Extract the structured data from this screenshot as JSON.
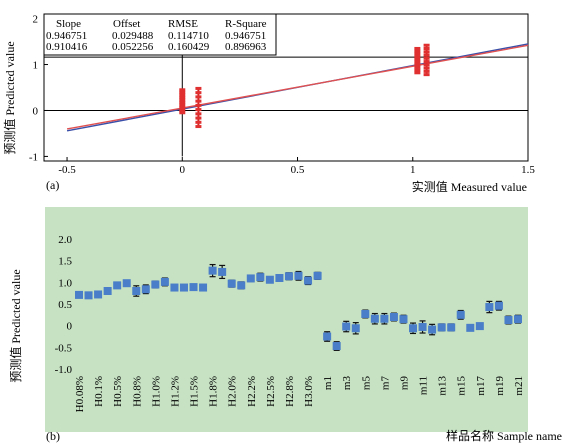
{
  "chart_data": [
    {
      "panel_label": "(a)",
      "type": "scatter",
      "xlabel": "实测值  Measured value",
      "ylabel": "预测值  Predicted value",
      "xlim": [
        -0.6,
        1.5
      ],
      "ylim": [
        -1.1,
        2.1
      ],
      "x_ticks": [
        "-0.5",
        "0",
        "0.5",
        "1",
        "1.5"
      ],
      "x_tick_values": [
        -0.5,
        0,
        0.5,
        1,
        1.5
      ],
      "y_ticks": [
        "-1",
        "0",
        "1",
        "2"
      ],
      "y_tick_values": [
        -1,
        0,
        1,
        2
      ],
      "reference_lines": [
        {
          "type": "vertical",
          "x": 0
        },
        {
          "type": "horizontal",
          "y": 0
        },
        {
          "type": "horizontal",
          "y": 1.16
        }
      ],
      "stats_table": {
        "headers": [
          "Slope",
          "Offset",
          "RMSE",
          "R-Square"
        ],
        "rows": [
          [
            "0.946751",
            "0.029488",
            "0.114710",
            "0.946751"
          ],
          [
            "0.910416",
            "0.052256",
            "0.160429",
            "0.896963"
          ]
        ]
      },
      "fit_lines": [
        {
          "slope": 0.946751,
          "offset": 0.029488,
          "color": "#3a4fa8"
        },
        {
          "slope": 0.910416,
          "offset": 0.052256,
          "color": "#e05050"
        }
      ],
      "clusters": [
        {
          "x": 0.0,
          "y_min": -0.05,
          "y_max": 0.45
        },
        {
          "x": 0.07,
          "y_min": -0.35,
          "y_max": 0.48
        },
        {
          "x": 1.02,
          "y_min": 0.82,
          "y_max": 1.35
        },
        {
          "x": 1.06,
          "y_min": 0.78,
          "y_max": 1.42
        }
      ]
    },
    {
      "panel_label": "(b)",
      "type": "scatter",
      "xlabel": "样品名称  Sample name",
      "ylabel": "预测值  Predicted value",
      "ylim": [
        -1.0,
        2.0
      ],
      "y_ticks": [
        "2.0",
        "1.5",
        "1.0",
        "0.5",
        "0",
        "-0.5",
        "-1.0"
      ],
      "y_tick_values": [
        2.0,
        1.5,
        1.0,
        0.5,
        0,
        -0.5,
        -1.0
      ],
      "background": "#c6e2c3",
      "marker_color": "#4a7ec8",
      "x_tick_labels": [
        "H0.08%",
        "H0.1%",
        "H0.5%",
        "H0.8%",
        "H1.0%",
        "H1.2%",
        "H1.5%",
        "H1.8%",
        "H2.0%",
        "H2.2%",
        "H2.5%",
        "H2.8%",
        "H3.0%",
        "m1",
        "m3",
        "m5",
        "m7",
        "m9",
        "m11",
        "m13",
        "m15",
        "m17",
        "m19",
        "m21"
      ],
      "points": [
        {
          "y": 0.71,
          "err": 0.06
        },
        {
          "y": 0.7,
          "err": 0.06
        },
        {
          "y": 0.72,
          "err": 0.06
        },
        {
          "y": 0.8,
          "err": 0.07
        },
        {
          "y": 0.93,
          "err": 0.07
        },
        {
          "y": 0.98,
          "err": 0.06
        },
        {
          "y": 0.8,
          "err": 0.12
        },
        {
          "y": 0.84,
          "err": 0.1
        },
        {
          "y": 0.95,
          "err": 0.08
        },
        {
          "y": 1.01,
          "err": 0.09
        },
        {
          "y": 0.88,
          "err": 0.06
        },
        {
          "y": 0.88,
          "err": 0.06
        },
        {
          "y": 0.89,
          "err": 0.06
        },
        {
          "y": 0.88,
          "err": 0.07
        },
        {
          "y": 1.27,
          "err": 0.14
        },
        {
          "y": 1.24,
          "err": 0.15
        },
        {
          "y": 0.97,
          "err": 0.08
        },
        {
          "y": 0.93,
          "err": 0.08
        },
        {
          "y": 1.09,
          "err": 0.07
        },
        {
          "y": 1.12,
          "err": 0.09
        },
        {
          "y": 1.06,
          "err": 0.06
        },
        {
          "y": 1.1,
          "err": 0.06
        },
        {
          "y": 1.14,
          "err": 0.08
        },
        {
          "y": 1.15,
          "err": 0.1
        },
        {
          "y": 1.04,
          "err": 0.09
        },
        {
          "y": 1.15,
          "err": 0.08
        },
        {
          "y": -0.25,
          "err": 0.11
        },
        {
          "y": -0.47,
          "err": 0.1
        },
        {
          "y": -0.02,
          "err": 0.12
        },
        {
          "y": -0.06,
          "err": 0.13
        },
        {
          "y": 0.27,
          "err": 0.09
        },
        {
          "y": 0.16,
          "err": 0.12
        },
        {
          "y": 0.16,
          "err": 0.12
        },
        {
          "y": 0.2,
          "err": 0.09
        },
        {
          "y": 0.15,
          "err": 0.09
        },
        {
          "y": -0.06,
          "err": 0.12
        },
        {
          "y": -0.03,
          "err": 0.14
        },
        {
          "y": -0.09,
          "err": 0.12
        },
        {
          "y": -0.04,
          "err": 0.08
        },
        {
          "y": -0.04,
          "err": 0.08
        },
        {
          "y": 0.25,
          "err": 0.1
        },
        {
          "y": -0.05,
          "err": 0.06
        },
        {
          "y": -0.01,
          "err": 0.06
        },
        {
          "y": 0.43,
          "err": 0.13
        },
        {
          "y": 0.46,
          "err": 0.1
        },
        {
          "y": 0.13,
          "err": 0.09
        },
        {
          "y": 0.15,
          "err": 0.09
        }
      ]
    }
  ]
}
